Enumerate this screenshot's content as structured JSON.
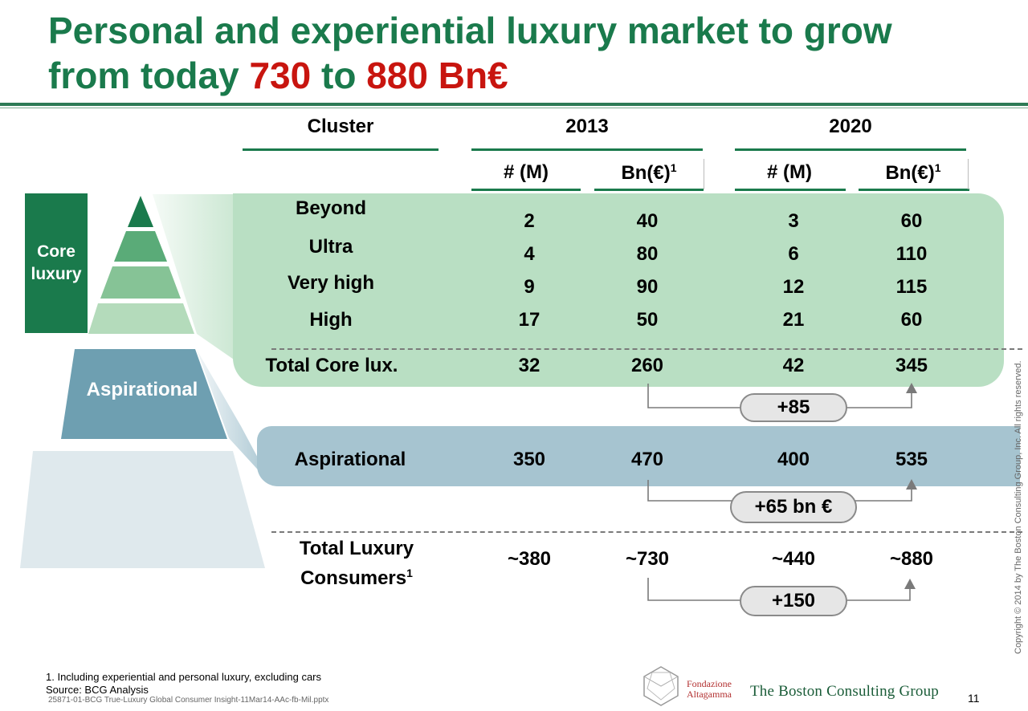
{
  "title": {
    "line1": "Personal and experiential luxury market to grow",
    "line2_prefix": "from today ",
    "value_from": "730",
    "connector": " to ",
    "value_to": "880 Bn€"
  },
  "headers": {
    "cluster": "Cluster",
    "year_a": "2013",
    "year_b": "2020",
    "count_label": "# (M)",
    "bn_label": "Bn(€)",
    "bn_sup": "1"
  },
  "side_labels": {
    "core_line1": "Core",
    "core_line2": "luxury",
    "aspirational": "Aspirational"
  },
  "rows": [
    {
      "label": "Beyond",
      "n2013": "2",
      "bn2013": "40",
      "n2020": "3",
      "bn2020": "60"
    },
    {
      "label": "Ultra",
      "n2013": "4",
      "bn2013": "80",
      "n2020": "6",
      "bn2020": "110"
    },
    {
      "label": "Very high",
      "n2013": "9",
      "bn2013": "90",
      "n2020": "12",
      "bn2020": "115"
    },
    {
      "label": "High",
      "n2013": "17",
      "bn2013": "50",
      "n2020": "21",
      "bn2020": "60"
    }
  ],
  "total_core": {
    "label": "Total Core lux.",
    "n2013": "32",
    "bn2013": "260",
    "n2020": "42",
    "bn2020": "345",
    "delta": "+85"
  },
  "aspirational": {
    "label": "Aspirational",
    "n2013": "350",
    "bn2013": "470",
    "n2020": "400",
    "bn2020": "535",
    "delta": "+65 bn €"
  },
  "total": {
    "label_line1": "Total Luxury",
    "label_line2": "Consumers",
    "label_sup": "1",
    "n2013": "~380",
    "bn2013": "~730",
    "n2020": "~440",
    "bn2020": "~880",
    "delta": "+150"
  },
  "footer": {
    "note": "1. Including experiential and personal luxury, excluding cars",
    "source": "Source: BCG Analysis",
    "file": "25871-01-BCG True-Luxury Global Consumer Insight-11Mar14-AAc-fb-Mil.pptx",
    "copyright": "Copyright © 2014 by The Boston Consulting Group, Inc. All rights reserved.",
    "partner_line1": "Fondazione",
    "partner_line2": "Altagamma",
    "brand": "The Boston Consulting Group",
    "page": "11"
  },
  "colors": {
    "title_green": "#1a7a4c",
    "highlight_red": "#c8150f",
    "core_band": "#b9dfc3",
    "aspirational_band": "#a6c4d0"
  }
}
